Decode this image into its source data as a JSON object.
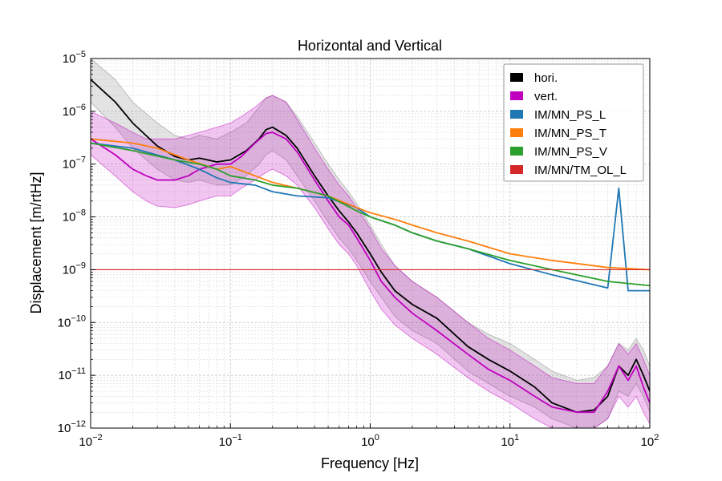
{
  "chart_data": {
    "type": "line",
    "title": "Horizontal and Vertical",
    "xlabel": "Frequency [Hz]",
    "ylabel": "Displacement [m/rtHz]",
    "xscale": "log",
    "yscale": "log",
    "xlim": [
      0.01,
      100
    ],
    "ylim": [
      1e-12,
      1e-05
    ],
    "x_ticks": [
      {
        "value": 0.01,
        "base": "10",
        "exp": "−2"
      },
      {
        "value": 0.1,
        "base": "10",
        "exp": "−1"
      },
      {
        "value": 1,
        "base": "10",
        "exp": "0"
      },
      {
        "value": 10,
        "base": "10",
        "exp": "1"
      },
      {
        "value": 100,
        "base": "10",
        "exp": "2"
      }
    ],
    "y_ticks": [
      {
        "value": 1e-12,
        "base": "10",
        "exp": "−12"
      },
      {
        "value": 1e-11,
        "base": "10",
        "exp": "−11"
      },
      {
        "value": 1e-10,
        "base": "10",
        "exp": "−10"
      },
      {
        "value": 1e-09,
        "base": "10",
        "exp": "−9"
      },
      {
        "value": 1e-08,
        "base": "10",
        "exp": "−8"
      },
      {
        "value": 1e-07,
        "base": "10",
        "exp": "−7"
      },
      {
        "value": 1e-06,
        "base": "10",
        "exp": "−6"
      },
      {
        "value": 1e-05,
        "base": "10",
        "exp": "−5"
      }
    ],
    "grid": true,
    "legend_position": "top-right",
    "series": [
      {
        "name": "hori.",
        "color": "#000000",
        "band_color": "#808080",
        "x": [
          0.01,
          0.015,
          0.02,
          0.03,
          0.04,
          0.05,
          0.06,
          0.08,
          0.1,
          0.13,
          0.16,
          0.18,
          0.2,
          0.25,
          0.3,
          0.4,
          0.5,
          0.6,
          0.7,
          0.8,
          1.0,
          1.2,
          1.5,
          2.0,
          3.0,
          5.0,
          7.0,
          10,
          15,
          20,
          30,
          40,
          50,
          60,
          70,
          80,
          90,
          100
        ],
        "y": [
          4e-06,
          1.5e-06,
          6e-07,
          2.2e-07,
          1.4e-07,
          1.2e-07,
          1.3e-07,
          1.1e-07,
          1.2e-07,
          1.8e-07,
          3e-07,
          4.5e-07,
          5e-07,
          3.5e-07,
          2e-07,
          6e-08,
          2.5e-08,
          1.3e-08,
          8e-09,
          5e-09,
          2e-09,
          9e-10,
          4e-10,
          2.2e-10,
          1.2e-10,
          3.5e-11,
          2e-11,
          1.2e-11,
          6e-12,
          3e-12,
          2e-12,
          2.2e-12,
          4e-12,
          1.5e-11,
          1e-11,
          2e-11,
          1e-11,
          5e-12
        ],
        "band_high": [
          1e-05,
          4e-06,
          1.5e-06,
          6e-07,
          3.5e-07,
          3e-07,
          3.5e-07,
          3e-07,
          4e-07,
          6e-07,
          1.2e-06,
          1.8e-06,
          2e-06,
          1.5e-06,
          8e-07,
          2.5e-07,
          1e-07,
          5e-08,
          3e-08,
          1.8e-08,
          7e-09,
          3e-09,
          1.2e-09,
          6e-10,
          3e-10,
          1e-10,
          6e-11,
          4e-11,
          2e-11,
          1.2e-11,
          8e-12,
          9e-12,
          1.5e-11,
          4e-11,
          3e-11,
          5e-11,
          3e-11,
          1.5e-11
        ],
        "band_low": [
          1.5e-06,
          5e-07,
          2e-07,
          8e-08,
          5e-08,
          4.5e-08,
          5e-08,
          4e-08,
          4e-08,
          6e-08,
          1e-07,
          1.5e-07,
          1.8e-07,
          1.2e-07,
          6e-08,
          2e-08,
          8e-09,
          4e-09,
          2.5e-09,
          1.5e-09,
          6e-10,
          3e-10,
          1.3e-10,
          7e-11,
          4e-11,
          1.2e-11,
          7e-12,
          4e-12,
          2.5e-12,
          1.5e-12,
          1e-12,
          1e-12,
          1.5e-12,
          5e-12,
          4e-12,
          7e-12,
          4e-12,
          2e-12
        ]
      },
      {
        "name": "vert.",
        "color": "#bf00bf",
        "band_color": "#bf00bf",
        "x": [
          0.01,
          0.015,
          0.02,
          0.025,
          0.03,
          0.04,
          0.05,
          0.06,
          0.08,
          0.1,
          0.12,
          0.15,
          0.18,
          0.2,
          0.25,
          0.3,
          0.4,
          0.5,
          0.6,
          0.7,
          0.8,
          1.0,
          1.2,
          1.5,
          2.0,
          3.0,
          5.0,
          7.0,
          10,
          15,
          20,
          30,
          40,
          50,
          60,
          70,
          80,
          90,
          100
        ],
        "y": [
          3e-07,
          1.5e-07,
          8e-08,
          6e-08,
          5e-08,
          5e-08,
          6e-08,
          8e-08,
          1e-07,
          1e-07,
          1.4e-07,
          2.5e-07,
          3.8e-07,
          4e-07,
          3e-07,
          1.7e-07,
          5e-08,
          2e-08,
          1e-08,
          7e-09,
          4e-09,
          1.5e-09,
          6e-10,
          3e-10,
          1.5e-10,
          7e-11,
          2.5e-11,
          1.3e-11,
          8e-12,
          4e-12,
          2.5e-12,
          2e-12,
          2e-12,
          5e-12,
          1.5e-11,
          8e-12,
          1.5e-11,
          6e-12,
          3e-12
        ],
        "band_high": [
          1e-06,
          6e-07,
          4e-07,
          3e-07,
          3e-07,
          3e-07,
          3.5e-07,
          4e-07,
          5e-07,
          6e-07,
          8e-07,
          1.2e-06,
          1.8e-06,
          2e-06,
          1.5e-06,
          7e-07,
          2e-07,
          8e-08,
          4e-08,
          2.5e-08,
          1.5e-08,
          6e-09,
          2.5e-09,
          1.2e-09,
          6e-10,
          3e-10,
          1e-10,
          5e-11,
          3e-11,
          1.5e-11,
          9e-12,
          7e-12,
          7e-12,
          1.5e-11,
          4e-11,
          2.5e-11,
          4e-11,
          2e-11,
          1e-11
        ],
        "band_low": [
          1.5e-07,
          6e-08,
          3e-08,
          2e-08,
          1.6e-08,
          1.5e-08,
          1.7e-08,
          2e-08,
          2.5e-08,
          2.5e-08,
          3.5e-08,
          5e-08,
          7e-08,
          8e-08,
          6e-08,
          4e-08,
          1.5e-08,
          6e-09,
          3e-09,
          2e-09,
          1.2e-09,
          4e-10,
          1.8e-10,
          9e-11,
          5e-11,
          2.5e-11,
          9e-12,
          5e-12,
          3e-12,
          1.5e-12,
          1e-12,
          1e-12,
          1e-12,
          1.5e-12,
          4e-12,
          2.5e-12,
          4e-12,
          2e-12,
          1.2e-12
        ]
      },
      {
        "name": "IM/MN_PS_L",
        "color": "#1f77b4",
        "x": [
          0.01,
          0.02,
          0.04,
          0.06,
          0.08,
          0.1,
          0.15,
          0.2,
          0.3,
          0.5,
          0.8,
          1.0,
          1.5,
          2.0,
          3.0,
          5.0,
          10,
          20,
          50,
          60,
          70,
          100
        ],
        "y": [
          2.5e-07,
          2e-07,
          1.2e-07,
          8e-08,
          5.5e-08,
          4.5e-08,
          4e-08,
          3e-08,
          2.5e-08,
          2.3e-08,
          1.5e-08,
          1e-08,
          7e-09,
          5e-09,
          3.5e-09,
          2.5e-09,
          1.3e-09,
          8e-10,
          4.5e-10,
          3.5e-08,
          4e-10,
          4e-10
        ]
      },
      {
        "name": "IM/MN_PS_T",
        "color": "#ff7f0e",
        "x": [
          0.01,
          0.02,
          0.03,
          0.05,
          0.08,
          0.1,
          0.15,
          0.2,
          0.3,
          0.5,
          0.8,
          1.0,
          1.5,
          2.0,
          3.0,
          5.0,
          10,
          20,
          50,
          100
        ],
        "y": [
          3e-07,
          2.5e-07,
          2e-07,
          1.2e-07,
          8e-08,
          9e-08,
          6e-08,
          4.5e-08,
          3.5e-08,
          2.5e-08,
          1.5e-08,
          1.2e-08,
          9e-09,
          7e-09,
          5e-09,
          3.5e-09,
          2e-09,
          1.5e-09,
          1.1e-09,
          1e-09
        ]
      },
      {
        "name": "IM/MN_PS_V",
        "color": "#2ca02c",
        "x": [
          0.01,
          0.02,
          0.04,
          0.06,
          0.08,
          0.1,
          0.15,
          0.2,
          0.3,
          0.5,
          0.8,
          1.0,
          1.5,
          2.0,
          3.0,
          5.0,
          10,
          20,
          50,
          100
        ],
        "y": [
          2.5e-07,
          1.8e-07,
          1.2e-07,
          1e-07,
          8e-08,
          6e-08,
          5e-08,
          4e-08,
          3.5e-08,
          2.5e-08,
          1.3e-08,
          1e-08,
          7e-09,
          5e-09,
          3.5e-09,
          2.5e-09,
          1.5e-09,
          1e-09,
          6e-10,
          5e-10
        ]
      },
      {
        "name": "IM/MN/TM_OL_L",
        "color": "#d62728",
        "x": [
          0.01,
          100
        ],
        "y": [
          1e-09,
          1e-09
        ]
      }
    ]
  }
}
